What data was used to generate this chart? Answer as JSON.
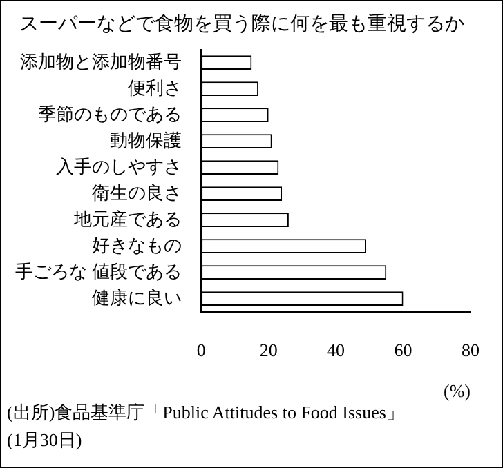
{
  "chart_data": {
    "type": "bar",
    "orientation": "horizontal",
    "title": "スーパーなどで食物を買う際に何を最も重視するか",
    "categories": [
      "添加物と添加物番号",
      "便利さ",
      "季節のものである",
      "動物保護",
      "入手のしやすさ",
      "衛生の良さ",
      "地元産である",
      "好きなもの",
      "手ごろな 値段である",
      "健康に良い"
    ],
    "values": [
      15,
      17,
      20,
      21,
      23,
      24,
      26,
      49,
      55,
      60
    ],
    "color": "#ffffff",
    "xlim": [
      0,
      80
    ],
    "xticks": [
      0,
      20,
      40,
      60,
      80
    ],
    "xlabel": "(%)",
    "grid": false,
    "legend": false,
    "annotations": [
      "(出所)食品基準庁「Public Attitudes to Food Issues」",
      "(1月30日)"
    ]
  }
}
